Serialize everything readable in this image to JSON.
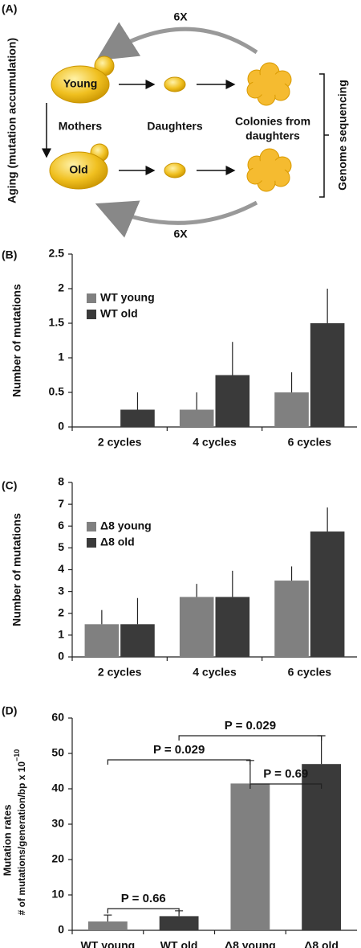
{
  "panel_a": {
    "label": "(A)",
    "cycles_top": "6X",
    "cycles_bottom": "6X",
    "young": "Young",
    "old": "Old",
    "mothers": "Mothers",
    "daughters": "Daughters",
    "colonies": [
      "Colonies from",
      "daughters"
    ],
    "sequencing": "Genome sequencing",
    "aging": "Aging (mutation accumulation)"
  },
  "chart_data": [
    {
      "type": "bar",
      "panel_label": "(B)",
      "y_label": "Number of mutations",
      "categories": [
        "2 cycles",
        "4 cycles",
        "6 cycles"
      ],
      "series": [
        {
          "name": "WT young",
          "color": "#808080",
          "values": [
            0,
            0.25,
            0.5
          ],
          "errors": [
            0,
            0.25,
            0.29
          ]
        },
        {
          "name": "WT old",
          "color": "#3a3a3a",
          "values": [
            0.25,
            0.75,
            1.5
          ],
          "errors": [
            0.25,
            0.48,
            0.5
          ]
        }
      ],
      "ylim": [
        0,
        2.5
      ],
      "yticks": [
        0,
        0.5,
        1,
        1.5,
        2,
        2.5
      ],
      "legend": "upper-left"
    },
    {
      "type": "bar",
      "panel_label": "(C)",
      "y_label": "Number of mutations",
      "categories": [
        "2 cycles",
        "4 cycles",
        "6 cycles"
      ],
      "series": [
        {
          "name": "Δ8 young",
          "color": "#808080",
          "values": [
            1.5,
            2.75,
            3.5
          ],
          "errors": [
            0.65,
            0.6,
            0.65
          ]
        },
        {
          "name": "Δ8 old",
          "color": "#3a3a3a",
          "values": [
            1.5,
            2.75,
            5.75
          ],
          "errors": [
            1.2,
            1.2,
            1.1
          ]
        }
      ],
      "ylim": [
        0,
        8
      ],
      "yticks": [
        0,
        1,
        2,
        3,
        4,
        5,
        6,
        7,
        8
      ],
      "legend": "upper-left"
    },
    {
      "type": "bar",
      "panel_label": "(D)",
      "y_label": [
        "Mutation rates",
        "# of mutations/generation/bp x 10"
      ],
      "y_label_exponent": "−10",
      "categories": [
        "WT young",
        "WT old",
        "Δ8 young",
        "Δ8  old"
      ],
      "values": [
        2.5,
        4,
        41.5,
        47
      ],
      "errors": [
        1.8,
        1.5,
        6.5,
        8
      ],
      "colors": [
        "#808080",
        "#3a3a3a",
        "#808080",
        "#3a3a3a"
      ],
      "ylim": [
        0,
        60
      ],
      "yticks": [
        0,
        10,
        20,
        30,
        40,
        50,
        60
      ],
      "annotations": [
        {
          "text": "P = 0.66",
          "between": [
            "WT young",
            "WT old"
          ]
        },
        {
          "text": "P = 0.029",
          "between": [
            "WT young",
            "Δ8 young"
          ]
        },
        {
          "text": "P = 0.69",
          "between": [
            "Δ8 young",
            "Δ8  old"
          ]
        },
        {
          "text": "P = 0.029",
          "between": [
            "WT old",
            "Δ8  old"
          ]
        }
      ]
    }
  ]
}
